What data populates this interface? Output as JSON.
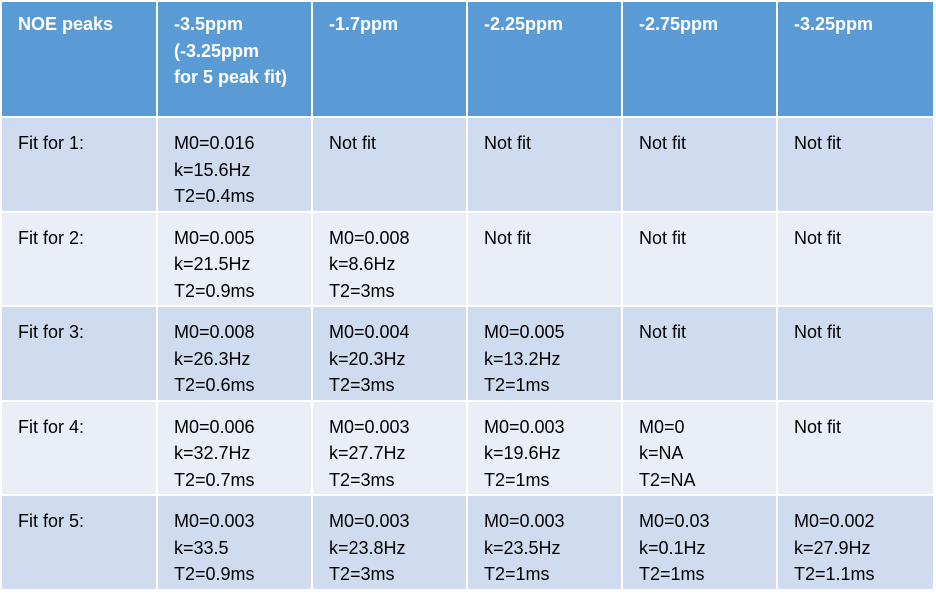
{
  "header": [
    "NOE peaks",
    "-3.5ppm\n(-3.25ppm\nfor 5 peak fit)",
    "-1.7ppm",
    "-2.25ppm",
    "-2.75ppm",
    "-3.25ppm"
  ],
  "rows": [
    [
      "Fit for 1:",
      "M0=0.016\nk=15.6Hz\nT2=0.4ms",
      "Not fit",
      "Not fit",
      "Not fit",
      "Not fit"
    ],
    [
      "Fit for 2:",
      "M0=0.005\nk=21.5Hz\nT2=0.9ms",
      "M0=0.008\nk=8.6Hz\nT2=3ms",
      "Not fit",
      "Not fit",
      "Not fit"
    ],
    [
      "Fit for 3:",
      "M0=0.008\nk=26.3Hz\nT2=0.6ms",
      "M0=0.004\nk=20.3Hz\nT2=3ms",
      "M0=0.005\nk=13.2Hz\nT2=1ms",
      "Not fit",
      "Not fit"
    ],
    [
      "Fit for 4:",
      "M0=0.006\nk=32.7Hz\nT2=0.7ms",
      "M0=0.003\nk=27.7Hz\nT2=3ms",
      "M0=0.003\nk=19.6Hz\nT2=1ms",
      "M0=0\nk=NA\nT2=NA",
      "Not fit"
    ],
    [
      "Fit for 5:",
      "M0=0.003\nk=33.5\nT2=0.9ms",
      "M0=0.003\nk=23.8Hz\nT2=3ms",
      "M0=0.003\nk=23.5Hz\nT2=1ms",
      "M0=0.03\nk=0.1Hz\nT2=1ms",
      "M0=0.002\nk=27.9Hz\nT2=1.1ms"
    ]
  ],
  "colors": {
    "header_bg": "#5b9bd5",
    "row_odd_bg": "#cfdbee",
    "row_even_bg": "#e9eef7",
    "border": "#ffffff"
  }
}
